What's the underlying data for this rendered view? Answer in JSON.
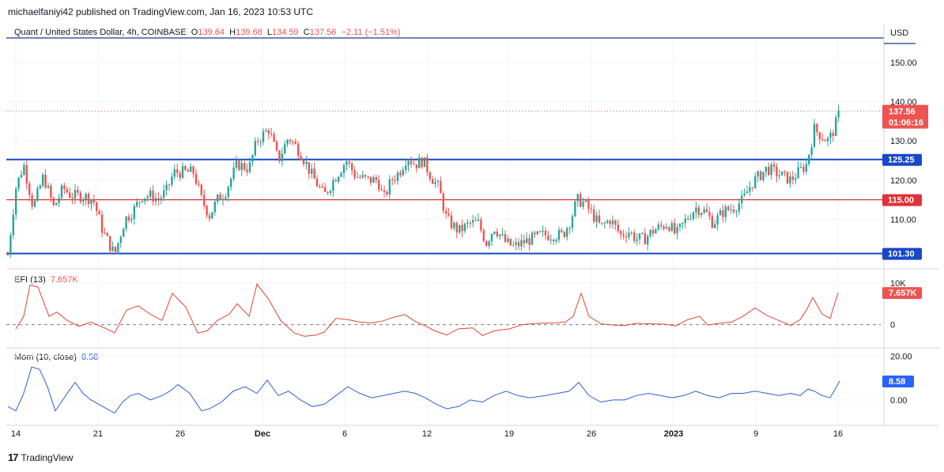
{
  "header": {
    "publisher": "michaelfaniyi42 published on TradingView.com, Jan 16, 2023 10:53 UTC"
  },
  "legend": {
    "symbol": "Quant / United States Dollar, 4h, COINBASE",
    "o_label": "O",
    "o": "139.64",
    "h_label": "H",
    "h": "139.68",
    "l_label": "L",
    "l": "134.59",
    "c_label": "C",
    "c": "137.56",
    "change": "−2.11 (−1.51%)"
  },
  "efi_legend": {
    "label": "EFI (13)",
    "value": "7.657K"
  },
  "mom_legend": {
    "label": "Mom (10, close)",
    "value": "8.58"
  },
  "currency": "USD",
  "footer": {
    "brand": "TradingView",
    "mark": "17"
  },
  "colors": {
    "up": "#26a69a",
    "down": "#ef5350",
    "support": "#1848c8",
    "resistance": "#e0313a",
    "efi": "#e0442f",
    "mom": "#2d5fd6",
    "grid": "#f0f3fa"
  },
  "chart_data": {
    "type": "candlestick",
    "price_axis": {
      "ticks": [
        "150.00",
        "140.00",
        "130.00",
        "120.00",
        "110.00"
      ],
      "tick_values": [
        150,
        140,
        130,
        120,
        110
      ],
      "ylim": [
        97.8,
        155.8
      ]
    },
    "time_axis": {
      "labels": [
        "14",
        "21",
        "26",
        "Dec",
        "6",
        "12",
        "19",
        "26",
        "2023",
        "9",
        "16"
      ]
    },
    "price_series": [
      [
        0,
        104
      ],
      [
        10,
        101
      ],
      [
        20,
        118
      ],
      [
        30,
        124
      ],
      [
        42,
        113
      ],
      [
        55,
        121
      ],
      [
        68,
        113
      ],
      [
        80,
        118
      ],
      [
        90,
        116
      ],
      [
        105,
        116
      ],
      [
        118,
        115
      ],
      [
        130,
        107
      ],
      [
        145,
        101
      ],
      [
        158,
        110
      ],
      [
        168,
        112
      ],
      [
        180,
        116
      ],
      [
        192,
        116
      ],
      [
        200,
        115
      ],
      [
        210,
        117
      ],
      [
        220,
        122
      ],
      [
        232,
        122
      ],
      [
        245,
        122
      ],
      [
        255,
        115
      ],
      [
        265,
        111
      ],
      [
        275,
        115
      ],
      [
        285,
        117
      ],
      [
        300,
        124
      ],
      [
        315,
        123
      ],
      [
        325,
        130
      ],
      [
        340,
        133
      ],
      [
        352,
        125
      ],
      [
        365,
        131
      ],
      [
        380,
        127
      ],
      [
        395,
        121
      ],
      [
        410,
        116
      ],
      [
        425,
        121
      ],
      [
        438,
        125
      ],
      [
        450,
        121
      ],
      [
        465,
        120
      ],
      [
        478,
        120
      ],
      [
        485,
        115
      ],
      [
        495,
        120
      ],
      [
        505,
        122
      ],
      [
        515,
        126
      ],
      [
        525,
        124
      ],
      [
        535,
        125
      ],
      [
        545,
        121
      ],
      [
        555,
        118
      ],
      [
        565,
        110
      ],
      [
        580,
        107
      ],
      [
        595,
        109
      ],
      [
        605,
        109
      ],
      [
        615,
        104
      ],
      [
        625,
        108
      ],
      [
        640,
        104
      ],
      [
        650,
        103
      ],
      [
        660,
        104
      ],
      [
        672,
        105
      ],
      [
        685,
        106
      ],
      [
        700,
        106
      ],
      [
        712,
        106
      ],
      [
        722,
        110
      ],
      [
        730,
        115
      ],
      [
        740,
        114
      ],
      [
        750,
        111
      ],
      [
        760,
        108
      ],
      [
        772,
        110
      ],
      [
        785,
        106
      ],
      [
        795,
        107
      ],
      [
        805,
        105
      ],
      [
        815,
        105
      ],
      [
        825,
        107
      ],
      [
        835,
        108
      ],
      [
        845,
        109
      ],
      [
        855,
        106
      ],
      [
        868,
        110
      ],
      [
        880,
        113
      ],
      [
        892,
        112
      ],
      [
        902,
        109
      ],
      [
        915,
        112
      ],
      [
        928,
        113
      ],
      [
        940,
        115
      ],
      [
        950,
        119
      ],
      [
        960,
        121
      ],
      [
        970,
        123
      ],
      [
        980,
        122
      ],
      [
        990,
        121
      ],
      [
        1000,
        120
      ],
      [
        1010,
        122
      ],
      [
        1020,
        124
      ],
      [
        1030,
        133
      ],
      [
        1040,
        131
      ],
      [
        1048,
        130
      ],
      [
        1055,
        133
      ],
      [
        1062,
        137.56
      ]
    ],
    "levels": [
      {
        "value": 125.25,
        "label": "125.25"
      },
      {
        "value": 115.0,
        "label": "115.00"
      },
      {
        "value": 101.3,
        "label": "101.30"
      }
    ],
    "last_price": {
      "value": 137.56,
      "label": "137.56",
      "countdown": "01:06:16"
    },
    "efi": {
      "ticks": [
        "10K",
        "0"
      ],
      "tick_values": [
        10000,
        0
      ],
      "ylim": [
        -5200,
        13000
      ],
      "series": [
        [
          20,
          -1000
        ],
        [
          30,
          2000
        ],
        [
          38,
          9500
        ],
        [
          48,
          9000
        ],
        [
          62,
          2000
        ],
        [
          72,
          3000
        ],
        [
          85,
          1000
        ],
        [
          100,
          -400
        ],
        [
          115,
          600
        ],
        [
          130,
          -600
        ],
        [
          145,
          -2000
        ],
        [
          160,
          3500
        ],
        [
          175,
          4500
        ],
        [
          190,
          2500
        ],
        [
          205,
          1000
        ],
        [
          218,
          7500
        ],
        [
          235,
          4200
        ],
        [
          250,
          -2000
        ],
        [
          262,
          -1500
        ],
        [
          275,
          1000
        ],
        [
          290,
          2500
        ],
        [
          300,
          5000
        ],
        [
          315,
          2000
        ],
        [
          325,
          9700
        ],
        [
          340,
          6000
        ],
        [
          355,
          1000
        ],
        [
          372,
          -2000
        ],
        [
          385,
          -2800
        ],
        [
          400,
          -2500
        ],
        [
          410,
          -1800
        ],
        [
          425,
          1500
        ],
        [
          440,
          1200
        ],
        [
          455,
          600
        ],
        [
          470,
          400
        ],
        [
          485,
          900
        ],
        [
          498,
          1800
        ],
        [
          512,
          2400
        ],
        [
          525,
          800
        ],
        [
          540,
          -500
        ],
        [
          550,
          -1500
        ],
        [
          565,
          -2500
        ],
        [
          580,
          -1000
        ],
        [
          598,
          -800
        ],
        [
          610,
          -2600
        ],
        [
          625,
          -1500
        ],
        [
          645,
          -1000
        ],
        [
          660,
          0
        ],
        [
          680,
          300
        ],
        [
          700,
          400
        ],
        [
          715,
          600
        ],
        [
          725,
          2000
        ],
        [
          735,
          7500
        ],
        [
          745,
          2000
        ],
        [
          760,
          200
        ],
        [
          775,
          -100
        ],
        [
          790,
          -200
        ],
        [
          805,
          300
        ],
        [
          820,
          200
        ],
        [
          840,
          100
        ],
        [
          855,
          -300
        ],
        [
          870,
          1200
        ],
        [
          885,
          2000
        ],
        [
          895,
          -100
        ],
        [
          910,
          300
        ],
        [
          925,
          600
        ],
        [
          940,
          2000
        ],
        [
          955,
          4000
        ],
        [
          970,
          2200
        ],
        [
          985,
          1000
        ],
        [
          1000,
          -200
        ],
        [
          1012,
          1200
        ],
        [
          1020,
          3500
        ],
        [
          1028,
          6500
        ],
        [
          1040,
          2500
        ],
        [
          1050,
          1500
        ],
        [
          1060,
          7657
        ]
      ]
    },
    "mom": {
      "ticks": [
        "20.00",
        "0.00"
      ],
      "tick_values": [
        20,
        0
      ],
      "ylim": [
        -10.5,
        23
      ],
      "series": [
        [
          10,
          -3
        ],
        [
          20,
          -5
        ],
        [
          30,
          3
        ],
        [
          40,
          15
        ],
        [
          50,
          14
        ],
        [
          60,
          6
        ],
        [
          70,
          -5
        ],
        [
          85,
          3
        ],
        [
          95,
          8
        ],
        [
          105,
          3
        ],
        [
          115,
          0
        ],
        [
          130,
          -3
        ],
        [
          145,
          -6
        ],
        [
          155,
          -1
        ],
        [
          165,
          2
        ],
        [
          175,
          3
        ],
        [
          190,
          0
        ],
        [
          205,
          2
        ],
        [
          215,
          4
        ],
        [
          225,
          7
        ],
        [
          240,
          3
        ],
        [
          255,
          -5
        ],
        [
          265,
          -4
        ],
        [
          280,
          -1
        ],
        [
          295,
          4
        ],
        [
          310,
          6
        ],
        [
          325,
          3
        ],
        [
          338,
          9
        ],
        [
          352,
          2
        ],
        [
          365,
          4
        ],
        [
          380,
          0
        ],
        [
          395,
          -3
        ],
        [
          410,
          -2
        ],
        [
          425,
          2
        ],
        [
          440,
          6
        ],
        [
          455,
          3
        ],
        [
          470,
          1
        ],
        [
          485,
          2
        ],
        [
          498,
          3
        ],
        [
          512,
          4
        ],
        [
          525,
          3
        ],
        [
          538,
          1
        ],
        [
          552,
          -2
        ],
        [
          565,
          -4
        ],
        [
          580,
          -3
        ],
        [
          595,
          0
        ],
        [
          610,
          -1
        ],
        [
          625,
          2
        ],
        [
          640,
          4
        ],
        [
          655,
          2
        ],
        [
          670,
          1
        ],
        [
          690,
          2
        ],
        [
          705,
          3
        ],
        [
          720,
          4
        ],
        [
          732,
          8
        ],
        [
          745,
          2
        ],
        [
          760,
          -1
        ],
        [
          775,
          0
        ],
        [
          790,
          0
        ],
        [
          805,
          2
        ],
        [
          820,
          3
        ],
        [
          835,
          2
        ],
        [
          850,
          1
        ],
        [
          865,
          2
        ],
        [
          880,
          4
        ],
        [
          895,
          2
        ],
        [
          910,
          1
        ],
        [
          925,
          3
        ],
        [
          940,
          3
        ],
        [
          955,
          4
        ],
        [
          970,
          3
        ],
        [
          985,
          2
        ],
        [
          1000,
          3
        ],
        [
          1012,
          2
        ],
        [
          1022,
          5
        ],
        [
          1030,
          4
        ],
        [
          1040,
          2
        ],
        [
          1050,
          1
        ],
        [
          1062,
          8.58
        ]
      ]
    }
  }
}
